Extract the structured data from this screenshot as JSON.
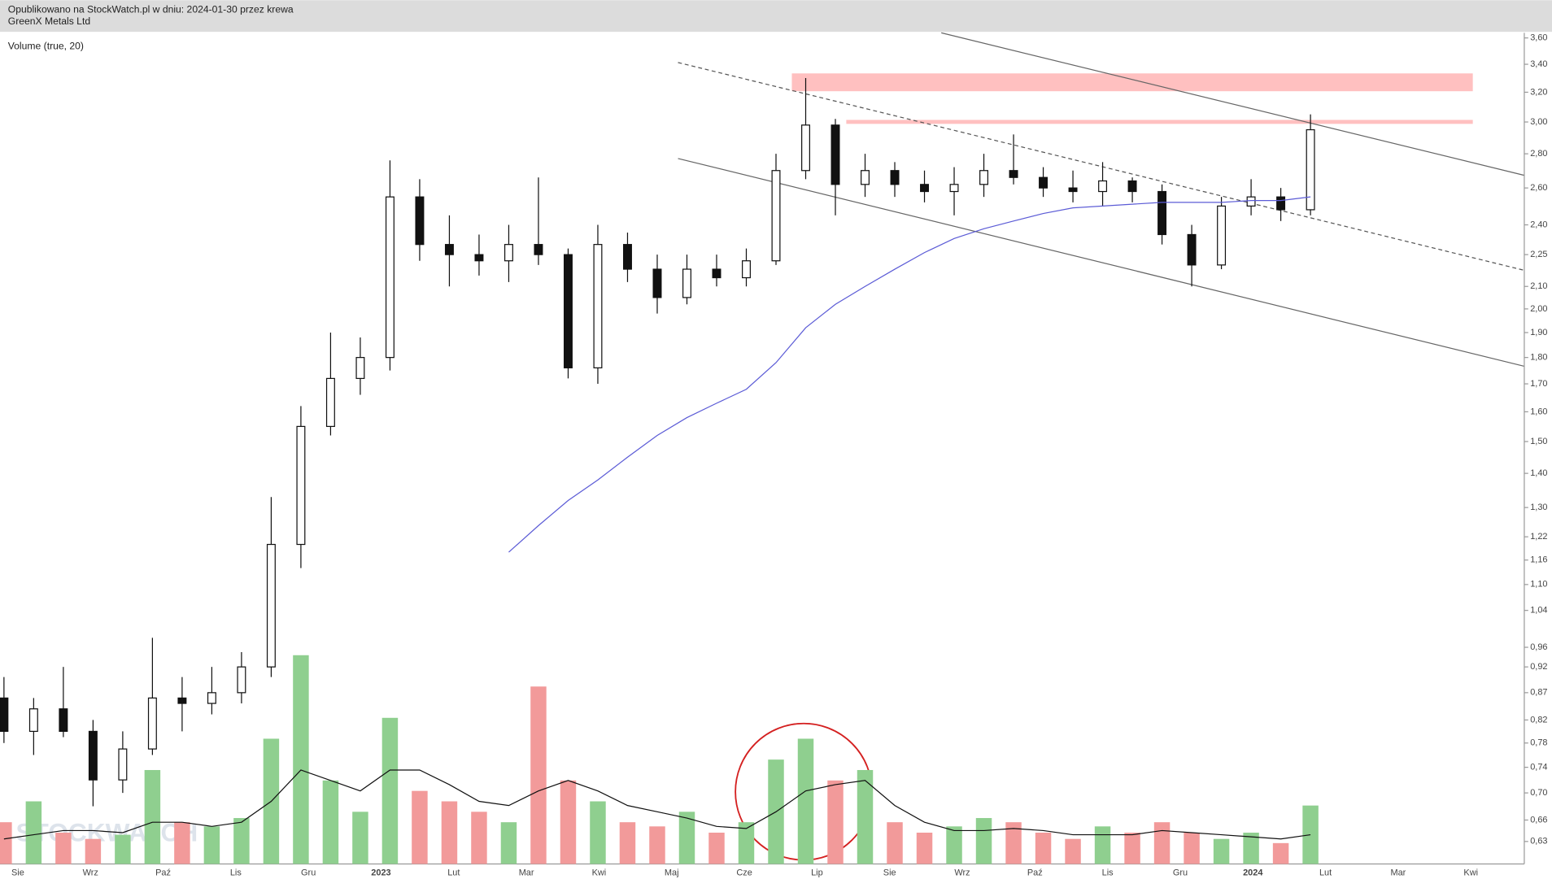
{
  "chart_data": {
    "type": "candlestick",
    "title": "Opublikowano na StockWatch.pl w dniu: 2024-01-30 przez krewa",
    "subtitle": "GreenX Metals Ltd",
    "volume_label": "Volume (true, 20)",
    "watermark": "STOCKWATCH",
    "log_scale": true,
    "ylim": [
      0.6,
      3.64
    ],
    "yticks": [
      {
        "value": 3.6,
        "label": "3,60"
      },
      {
        "value": 3.4,
        "label": "3,40"
      },
      {
        "value": 3.2,
        "label": "3,20"
      },
      {
        "value": 3.0,
        "label": "3,00"
      },
      {
        "value": 2.8,
        "label": "2,80"
      },
      {
        "value": 2.6,
        "label": "2,60"
      },
      {
        "value": 2.4,
        "label": "2,40"
      },
      {
        "value": 2.25,
        "label": "2,25"
      },
      {
        "value": 2.1,
        "label": "2,10"
      },
      {
        "value": 2.0,
        "label": "2,00"
      },
      {
        "value": 1.9,
        "label": "1,90"
      },
      {
        "value": 1.8,
        "label": "1,80"
      },
      {
        "value": 1.7,
        "label": "1,70"
      },
      {
        "value": 1.6,
        "label": "1,60"
      },
      {
        "value": 1.5,
        "label": "1,50"
      },
      {
        "value": 1.4,
        "label": "1,40"
      },
      {
        "value": 1.3,
        "label": "1,30"
      },
      {
        "value": 1.22,
        "label": "1,22"
      },
      {
        "value": 1.16,
        "label": "1,16"
      },
      {
        "value": 1.1,
        "label": "1,10"
      },
      {
        "value": 1.04,
        "label": "1,04"
      },
      {
        "value": 0.96,
        "label": "0,96"
      },
      {
        "value": 0.92,
        "label": "0,92"
      },
      {
        "value": 0.87,
        "label": "0,87"
      },
      {
        "value": 0.82,
        "label": "0,82"
      },
      {
        "value": 0.78,
        "label": "0,78"
      },
      {
        "value": 0.74,
        "label": "0,74"
      },
      {
        "value": 0.7,
        "label": "0,70"
      },
      {
        "value": 0.66,
        "label": "0,66"
      },
      {
        "value": 0.63,
        "label": "0,63"
      }
    ],
    "month_labels": [
      "Sie",
      "Wrz",
      "Paź",
      "Lis",
      "Gru",
      "2023",
      "Lut",
      "Mar",
      "Kwi",
      "Maj",
      "Cze",
      "Lip",
      "Sie",
      "Wrz",
      "Paź",
      "Lis",
      "Gru",
      "2024",
      "Lut",
      "Mar",
      "Kwi"
    ],
    "open": [
      0.86,
      0.8,
      0.84,
      0.8,
      0.72,
      0.77,
      0.86,
      0.85,
      0.87,
      0.92,
      1.2,
      1.55,
      1.72,
      1.8,
      2.55,
      2.3,
      2.25,
      2.22,
      2.3,
      2.25,
      1.76,
      2.3,
      2.18,
      2.05,
      2.18,
      2.14,
      2.22,
      2.7,
      2.98,
      2.62,
      2.7,
      2.62,
      2.58,
      2.62,
      2.7,
      2.66,
      2.6,
      2.58,
      2.64,
      2.58,
      2.35,
      2.2,
      2.5,
      2.55,
      2.48
    ],
    "high": [
      0.9,
      0.86,
      0.92,
      0.82,
      0.8,
      0.98,
      0.9,
      0.92,
      0.95,
      1.33,
      1.62,
      1.9,
      1.88,
      2.76,
      2.65,
      2.45,
      2.35,
      2.4,
      2.66,
      2.28,
      2.4,
      2.36,
      2.25,
      2.25,
      2.25,
      2.28,
      2.8,
      3.3,
      3.02,
      2.8,
      2.75,
      2.7,
      2.72,
      2.8,
      2.92,
      2.72,
      2.7,
      2.75,
      2.66,
      2.62,
      2.4,
      2.55,
      2.65,
      2.6,
      3.05
    ],
    "low": [
      0.78,
      0.76,
      0.79,
      0.68,
      0.7,
      0.76,
      0.8,
      0.83,
      0.85,
      0.9,
      1.14,
      1.52,
      1.66,
      1.75,
      2.22,
      2.1,
      2.15,
      2.12,
      2.2,
      1.72,
      1.7,
      2.12,
      1.98,
      2.02,
      2.1,
      2.1,
      2.2,
      2.65,
      2.45,
      2.55,
      2.55,
      2.52,
      2.45,
      2.55,
      2.62,
      2.55,
      2.52,
      2.5,
      2.52,
      2.3,
      2.1,
      2.18,
      2.45,
      2.42,
      2.45
    ],
    "close": [
      0.8,
      0.84,
      0.8,
      0.72,
      0.77,
      0.86,
      0.85,
      0.87,
      0.92,
      1.2,
      1.55,
      1.72,
      1.8,
      2.55,
      2.3,
      2.25,
      2.22,
      2.3,
      2.25,
      1.76,
      2.3,
      2.18,
      2.05,
      2.18,
      2.14,
      2.22,
      2.7,
      2.98,
      2.62,
      2.7,
      2.62,
      2.58,
      2.62,
      2.7,
      2.66,
      2.6,
      2.58,
      2.64,
      2.58,
      2.35,
      2.2,
      2.5,
      2.55,
      2.48,
      2.95
    ],
    "ma": [
      null,
      null,
      null,
      null,
      null,
      null,
      null,
      null,
      null,
      null,
      null,
      null,
      null,
      null,
      null,
      null,
      null,
      1.18,
      1.25,
      1.32,
      1.38,
      1.45,
      1.52,
      1.58,
      1.63,
      1.68,
      1.78,
      1.92,
      2.02,
      2.1,
      2.18,
      2.26,
      2.33,
      2.38,
      2.42,
      2.46,
      2.49,
      2.5,
      2.51,
      2.52,
      2.52,
      2.52,
      2.53,
      2.53,
      2.55
    ],
    "ma_color": "#5b5bd6",
    "volume": [
      20,
      30,
      15,
      12,
      14,
      45,
      20,
      18,
      22,
      60,
      100,
      40,
      25,
      70,
      35,
      30,
      25,
      20,
      85,
      40,
      30,
      20,
      18,
      25,
      15,
      20,
      50,
      60,
      40,
      45,
      20,
      15,
      18,
      22,
      20,
      15,
      12,
      18,
      15,
      20,
      15,
      12,
      15,
      10,
      28
    ],
    "volume_ma": [
      12,
      14,
      16,
      16,
      15,
      20,
      20,
      18,
      20,
      30,
      45,
      40,
      35,
      45,
      45,
      38,
      30,
      28,
      35,
      40,
      35,
      28,
      25,
      22,
      18,
      17,
      25,
      35,
      38,
      40,
      28,
      20,
      16,
      16,
      17,
      16,
      14,
      14,
      14,
      16,
      15,
      14,
      13,
      12,
      14
    ],
    "up_color": "#8fcf8f",
    "down_color": "#f29a9a",
    "candle_color": "#111111"
  }
}
